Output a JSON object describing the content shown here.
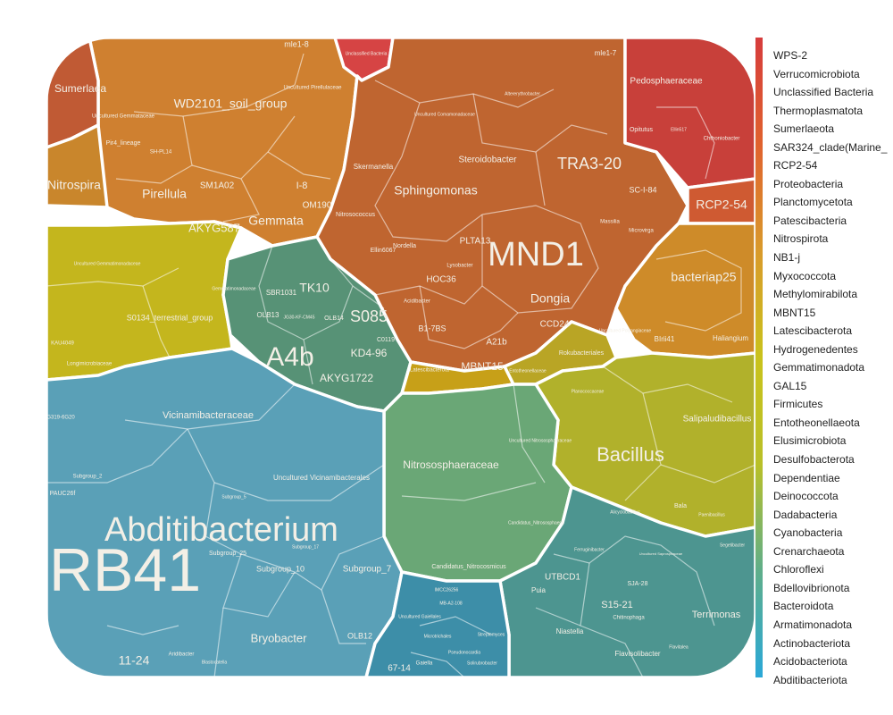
{
  "chart_data": {
    "type": "voronoi-treemap",
    "title": "",
    "legend": {
      "placement": "right",
      "color_stops": [
        "#d63c3c",
        "#e0622e",
        "#d99a2b",
        "#c9c21c",
        "#b9c028",
        "#5fae8a",
        "#2aa8d8"
      ],
      "items": [
        "WPS-2",
        "Verrucomicrobiota",
        "Unclassified Bacteria",
        "Thermoplasmatota",
        "Sumerlaeota",
        "SAR324_clade(Marine_",
        "RCP2-54",
        "Proteobacteria",
        "Planctomycetota",
        "Patescibacteria",
        "Nitrospirota",
        "NB1-j",
        "Myxococcota",
        "Methylomirabilota",
        "MBNT15",
        "Latescibacterota",
        "Hydrogenedentes",
        "Gemmatimonadota",
        "GAL15",
        "Firmicutes",
        "Entotheonellaeota",
        "Elusimicrobiota",
        "Desulfobacterota",
        "Dependentiae",
        "Deinococcota",
        "Dadabacteria",
        "Cyanobacteria",
        "Crenarchaeota",
        "Chloroflexi",
        "Bdellovibrionota",
        "Bacteroidota",
        "Armatimonadota",
        "Actinobacteriota",
        "Acidobacteriota",
        "Abditibacteriota"
      ]
    },
    "groups": [
      {
        "name": "Planctomycetota",
        "color": "#cf8030",
        "cells": [
          "WD2101_soil_group",
          "Pirellula",
          "Gemmata",
          "AKYG587",
          "SM1A02",
          "I-8",
          "OM190",
          "mle1-8",
          "Uncultured Pirellulaceae",
          "Uncultured Gemmataceae",
          "Pir4_lineage",
          "SH-PL14"
        ]
      },
      {
        "name": "Sumerlaeota",
        "color": "#c05a34",
        "cells": [
          "Sumerlaea"
        ]
      },
      {
        "name": "Unclassified Bacteria",
        "color": "#d64444",
        "cells": [
          "Unclassified Bacteria"
        ]
      },
      {
        "name": "Nitrospirota",
        "color": "#c9862c",
        "cells": [
          "Nitrospira"
        ]
      },
      {
        "name": "Proteobacteria",
        "color": "#bf6530",
        "cells": [
          "MND1",
          "Sphingomonas",
          "TRA3-20",
          "Steroidobacter",
          "Dongia",
          "Skermanella",
          "Nitrosococcus",
          "PLTA13",
          "HOC36",
          "B1-7BS",
          "A21b",
          "CCD24",
          "SC-I-84",
          "Ellin6067",
          "Nordella",
          "mle1-7",
          "Acidibacter",
          "Lysobacter",
          "Uncultured Comamonadaceae",
          "Microvirga",
          "Massilia",
          "Altererythrobacter"
        ]
      },
      {
        "name": "Verrucomicrobiota",
        "color": "#c8403a",
        "cells": [
          "Pedosphaeraceae",
          "Opitutus",
          "Chthoniobacter",
          "Ellin517"
        ]
      },
      {
        "name": "RCP2-54",
        "color": "#cf5a32",
        "cells": [
          "RCP2-54"
        ]
      },
      {
        "name": "Myxococcota",
        "color": "#ce8b29",
        "cells": [
          "bacteriap25",
          "BIrii41",
          "Haliangium",
          "Uncultured Polyangiaceae"
        ]
      },
      {
        "name": "Methylomirabilota",
        "color": "#b9a525",
        "cells": [
          "Rokubacteriales"
        ]
      },
      {
        "name": "Gemmatimonadota",
        "color": "#c4b61d",
        "cells": [
          "S0134_terrestrial_group",
          "Longimicrobiaceae",
          "Uncultured Gemmatimonadaceae",
          "Gemmatimonadaceae",
          "KAU4049"
        ]
      },
      {
        "name": "MBNT15",
        "color": "#c7a018",
        "cells": [
          "MBNT15"
        ]
      },
      {
        "name": "Latescibacterota",
        "color": "#c9a21a",
        "cells": [
          "Latescibacterota"
        ]
      },
      {
        "name": "Entotheonellaeota",
        "color": "#b5ad1e",
        "cells": [
          "Entotheonellaceae"
        ]
      },
      {
        "name": "Chloroflexi",
        "color": "#579276",
        "cells": [
          "A4b",
          "S085",
          "TK10",
          "KD4-96",
          "AKYG1722",
          "SBR1031",
          "OLB13",
          "JG30-KF-CM45",
          "OLB14",
          "C0119"
        ]
      },
      {
        "name": "Firmicutes",
        "color": "#b1b12b",
        "cells": [
          "Bacillus",
          "Salipaludibacillus",
          "Planococcaceae",
          "Bala",
          "Alicyclobacillus",
          "Paenibacillus"
        ]
      },
      {
        "name": "Crenarchaeota",
        "color": "#6aa776",
        "cells": [
          "Nitrososphaeraceae",
          "Candidatus_Nitrocosmicus",
          "Candidatus_Nitrososphaera",
          "Uncultured Nitrososphaeraceae"
        ]
      },
      {
        "name": "Acidobacteriota",
        "color": "#5aa0b7",
        "cells": [
          "RB41",
          "Abditibacterium",
          "Vicinamibacteraceae",
          "Uncultured Vicinamibacterales",
          "Subgroup_10",
          "Subgroup_7",
          "Subgroup_25",
          "Bryobacter",
          "11-24",
          "OLB12",
          "Blastocatella",
          "Aridibacter",
          "PAUC26f",
          "Subgroup_2",
          "Subgroup_5",
          "Subgroup_17",
          "G319-6G20"
        ]
      },
      {
        "name": "Bacteroidota",
        "color": "#4d9590",
        "cells": [
          "S15-21",
          "UTBCD1",
          "Terrimonas",
          "Flavisolibacter",
          "Niastella",
          "Chitinophaga",
          "Puia",
          "Flavitalea",
          "SJA-28",
          "Uncultured Saprospiraceae",
          "Ferruginibacter",
          "Segetibacter"
        ]
      },
      {
        "name": "Actinobacteriota",
        "color": "#3d8ea8",
        "cells": [
          "67-14",
          "Gaiella",
          "IMCC26256",
          "Pseudonocardia",
          "Solirubrobacter",
          "Uncultured Gaiellales",
          "Microtrichales",
          "MB-A2-108",
          "Streptomyces"
        ]
      }
    ]
  },
  "labels": {
    "wd2101": "WD2101_soil_group",
    "pirellula": "Pirellula",
    "gemmata": "Gemmata",
    "akyg587": "AKYG587",
    "sm1a02": "SM1A02",
    "i8": "I-8",
    "om190": "OM190",
    "mle18": "mle1-8",
    "uncpirell": "Uncultured Pirellulaceae",
    "uncgemm": "Uncultured Gemmataceae",
    "pir4": "Pir4_lineage",
    "shpl14": "SH-PL14",
    "sumerlaea": "Sumerlaea",
    "unclbact": "Unclassified Bacteria",
    "nitrospira": "Nitrospira",
    "mnd1": "MND1",
    "sphingo": "Sphingomonas",
    "tra3": "TRA3-20",
    "steroido": "Steroidobacter",
    "dongia": "Dongia",
    "skerman": "Skermanella",
    "nitrosoc": "Nitrosococcus",
    "plta13": "PLTA13",
    "hoc36": "HOC36",
    "b17bs": "B1-7BS",
    "a21b": "A21b",
    "ccd24": "CCD24",
    "sci84": "SC-I-84",
    "ellin6067": "Ellin6067",
    "nordella": "Nordella",
    "mle17": "mle1-7",
    "acidibacter": "Acidibacter",
    "lysobacter": "Lysobacter",
    "unccomam": "Uncultured Comamonadaceae",
    "microvirga": "Microvirga",
    "massilia": "Massilia",
    "altery": "Altererythrobacter",
    "pedosph": "Pedosphaeraceae",
    "opitutus": "Opitutus",
    "chthonio": "Chthoniobacter",
    "ellin517": "Ellin517",
    "rcp254": "RCP2-54",
    "bacteriap25": "bacteriap25",
    "blrii41": "BIrii41",
    "haliangium": "Haliangium",
    "uncpolyang": "Uncultured Polyangiaceae",
    "rokubact": "Rokubacteriales",
    "s0134": "S0134_terrestrial_group",
    "longimicro": "Longimicrobiaceae",
    "uncgammat": "Uncultured Gemmatimonadaceae",
    "gemmatiac": "Gemmatimonadaceae",
    "kau4049": "KAU4049",
    "mbnt15": "MBNT15",
    "latesci": "Latescibacterota",
    "entotheo": "Entotheonellaceae",
    "a4b": "A4b",
    "s085": "S085",
    "tk10": "TK10",
    "kd496": "KD4-96",
    "akyg1722": "AKYG1722",
    "sbr1031": "SBR1031",
    "olb13": "OLB13",
    "jg30": "JG30-KF-CM45",
    "olb14": "OLB14",
    "c0119": "C0119",
    "bacillus": "Bacillus",
    "salipalu": "Salipaludibacillus",
    "planococ": "Planococcaceae",
    "bala": "Bala",
    "alicyclo": "Alicyclobacillus",
    "paenibac": "Paenibacillus",
    "nitrososph": "Nitrososphaeraceae",
    "cnitrocos": "Candidatus_Nitrocosmicus",
    "cnitrososph": "Candidatus_Nitrososphaera",
    "uncnitroso": "Uncultured Nitrososphaeraceae",
    "rb41": "RB41",
    "abditib": "Abditibacterium",
    "vicinami": "Vicinamibacteraceae",
    "uncvicin": "Uncultured Vicinamibacterales",
    "sub10": "Subgroup_10",
    "sub7": "Subgroup_7",
    "sub25": "Subgroup_25",
    "bryobacter": "Bryobacter",
    "n1124": "11-24",
    "olb12": "OLB12",
    "blastocat": "Blastocatella",
    "aridibac": "Aridibacter",
    "pauc26f": "PAUC26f",
    "sub2": "Subgroup_2",
    "sub5": "Subgroup_5",
    "sub17": "Subgroup_17",
    "g319": "G319-6G20",
    "s1521": "S15-21",
    "utbcd1": "UTBCD1",
    "terrimonas": "Terrimonas",
    "flavisoli": "Flavisolibacter",
    "niastella": "Niastella",
    "chitinoph": "Chitinophaga",
    "puia": "Puia",
    "flavitalea": "Flavitalea",
    "sja28": "SJA-28",
    "uncsaprosp": "Uncultured Saprospiraceae",
    "ferrugini": "Ferruginibacter",
    "segetibac": "Segetibacter",
    "n6714": "67-14",
    "gaiella": "Gaiella",
    "imcc": "IMCC26256",
    "pseudonoc": "Pseudonocardia",
    "solirubro": "Solirubrobacter",
    "uncgaiell": "Uncultured Gaiellales",
    "microtrich": "Microtrichales",
    "mba2": "MB-A2-108",
    "streptomy": "Streptomyces"
  }
}
